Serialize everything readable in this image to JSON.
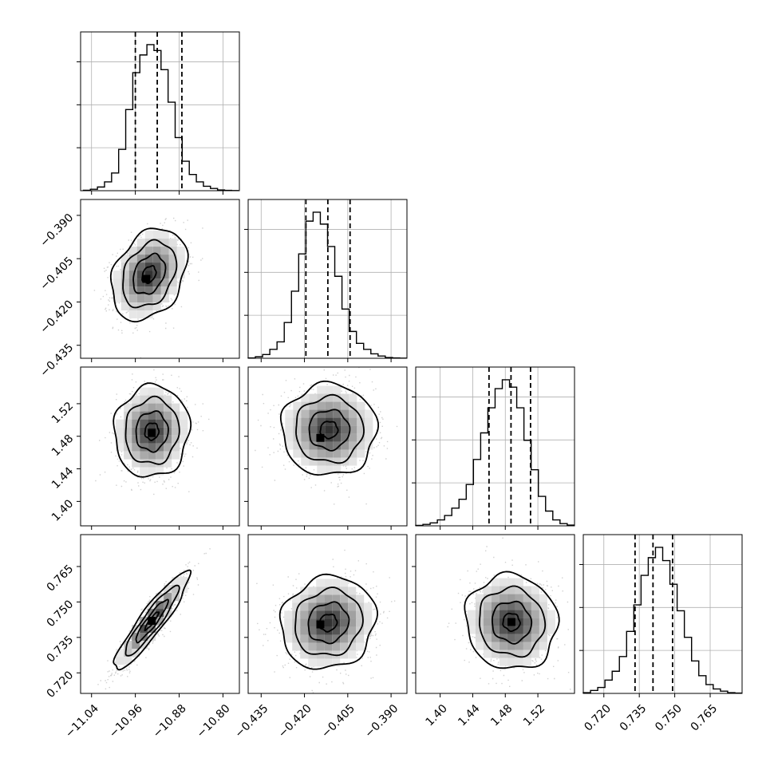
{
  "chart_data": {
    "type": "corner",
    "grid": true,
    "parameters": [
      {
        "range": [
          -11.06,
          -10.77
        ],
        "ticks": [
          -11.04,
          -10.96,
          -10.88,
          -10.8
        ],
        "tick_labels": [
          "−11.04",
          "−10.96",
          "−10.88",
          "−10.80"
        ],
        "quantiles": [
          -10.96,
          -10.92,
          -10.875
        ],
        "hist_edges_start": -11.055,
        "hist_bin_width": 0.0129,
        "hist_counts": [
          0.3,
          1.0,
          2.5,
          6.0,
          12.0,
          28.0,
          55.0,
          80.0,
          92.0,
          99.0,
          95.0,
          82.0,
          60.0,
          36.0,
          20.0,
          11.0,
          6.0,
          3.0,
          1.5,
          0.5,
          0.2,
          0.1
        ]
      },
      {
        "range": [
          -0.4395,
          -0.3845
        ],
        "ticks": [
          -0.435,
          -0.42,
          -0.405,
          -0.39
        ],
        "tick_labels": [
          "−0.435",
          "−0.420",
          "−0.405",
          "−0.390"
        ],
        "quantiles": [
          -0.4195,
          -0.4119,
          -0.4042
        ],
        "hist_edges_start": -0.4395,
        "hist_bin_width": 0.0025,
        "hist_counts": [
          0.2,
          1.0,
          2.5,
          6.0,
          11.0,
          24.0,
          45.0,
          70.0,
          92.0,
          98.0,
          90.0,
          75.0,
          55.0,
          33.0,
          18.0,
          10.0,
          6.0,
          3.0,
          1.5,
          0.5,
          0.2,
          0.1
        ]
      },
      {
        "range": [
          1.37,
          1.565
        ],
        "ticks": [
          1.4,
          1.44,
          1.48,
          1.52
        ],
        "tick_labels": [
          "1.40",
          "1.44",
          "1.48",
          "1.52"
        ],
        "quantiles": [
          1.46,
          1.487,
          1.511
        ],
        "hist_edges_start": 1.37,
        "hist_bin_width": 0.00886,
        "hist_counts": [
          0.3,
          1.0,
          2.0,
          4.0,
          7.0,
          12.0,
          18.0,
          28.0,
          45.0,
          63.0,
          80.0,
          93.0,
          99.0,
          94.0,
          80.0,
          58.0,
          38.0,
          20.0,
          10.0,
          4.0,
          1.5,
          0.5
        ]
      },
      {
        "range": [
          0.7113,
          0.7785
        ],
        "ticks": [
          0.72,
          0.735,
          0.75,
          0.765
        ],
        "tick_labels": [
          "0.720",
          "0.735",
          "0.750",
          "0.765"
        ],
        "quantiles": [
          0.7332,
          0.7408,
          0.7491
        ],
        "hist_edges_start": 0.7113,
        "hist_bin_width": 0.003055,
        "hist_counts": [
          0.5,
          2.0,
          4.0,
          9.0,
          15.0,
          25.0,
          42.0,
          60.0,
          80.0,
          92.0,
          99.0,
          90.0,
          74.0,
          56.0,
          38.0,
          22.0,
          12.0,
          6.0,
          3.0,
          1.5,
          0.5,
          0.2
        ]
      }
    ],
    "pairs": [
      {
        "row": 1,
        "col": 0,
        "center": [
          -10.935,
          -0.4105
        ],
        "sd": [
          0.028,
          0.0065
        ],
        "corr": 0.3,
        "mode_marker": [
          -10.94,
          -0.412
        ]
      },
      {
        "row": 2,
        "col": 0,
        "center": [
          -10.93,
          1.486
        ],
        "sd": [
          0.028,
          0.023
        ],
        "corr": 0.05,
        "mode_marker": [
          -10.93,
          1.484
        ]
      },
      {
        "row": 2,
        "col": 1,
        "center": [
          -0.4115,
          1.488
        ],
        "sd": [
          0.0067,
          0.023
        ],
        "corr": 0.0,
        "mode_marker": [
          -0.4145,
          1.478
        ]
      },
      {
        "row": 3,
        "col": 0,
        "center": [
          -10.93,
          0.742
        ],
        "sd": [
          0.028,
          0.0085
        ],
        "corr": 0.92,
        "mode_marker": [
          -10.93,
          0.742
        ]
      },
      {
        "row": 3,
        "col": 1,
        "center": [
          -0.4118,
          0.7412
        ],
        "sd": [
          0.0067,
          0.008
        ],
        "corr": 0.1,
        "mode_marker": [
          -0.4145,
          0.7405
        ]
      },
      {
        "row": 3,
        "col": 2,
        "center": [
          1.4875,
          0.7415
        ],
        "sd": [
          0.023,
          0.0082
        ],
        "corr": -0.05,
        "mode_marker": [
          1.4875,
          0.7415
        ]
      }
    ]
  }
}
